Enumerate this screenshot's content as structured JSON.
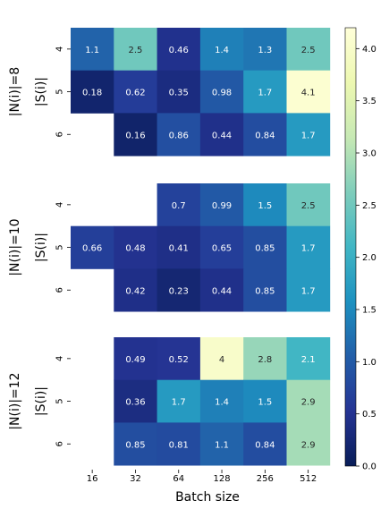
{
  "chart_data": {
    "type": "heatmap",
    "xlabel": "Batch size",
    "x_categories": [
      "16",
      "32",
      "64",
      "128",
      "256",
      "512"
    ],
    "row_axis_label": "|S(i)|",
    "row_categories": [
      "4",
      "5",
      "6"
    ],
    "colorbar": {
      "colormap": "YlGnBu_r",
      "range": [
        0.0,
        4.2
      ],
      "ticks": [
        "0.0",
        "0.5",
        "1.0",
        "1.5",
        "2.0",
        "2.5",
        "3.0",
        "3.5",
        "4.0"
      ]
    },
    "panels": [
      {
        "group_label": "|N(i)|=8",
        "values": [
          [
            1.1,
            2.5,
            0.46,
            1.4,
            1.3,
            2.5
          ],
          [
            0.18,
            0.62,
            0.35,
            0.98,
            1.7,
            4.1
          ],
          [
            null,
            0.16,
            0.86,
            0.44,
            0.84,
            1.7
          ]
        ]
      },
      {
        "group_label": "|N(i)|=10",
        "values": [
          [
            null,
            null,
            0.7,
            0.99,
            1.5,
            2.5
          ],
          [
            0.66,
            0.48,
            0.41,
            0.65,
            0.85,
            1.7
          ],
          [
            null,
            0.42,
            0.23,
            0.44,
            0.85,
            1.7
          ]
        ]
      },
      {
        "group_label": "|N(i)|=12",
        "values": [
          [
            null,
            0.49,
            0.52,
            4,
            2.8,
            2.1
          ],
          [
            null,
            0.36,
            1.7,
            1.4,
            1.5,
            2.9
          ],
          [
            null,
            0.85,
            0.81,
            1.1,
            0.84,
            2.9
          ]
        ]
      }
    ]
  }
}
